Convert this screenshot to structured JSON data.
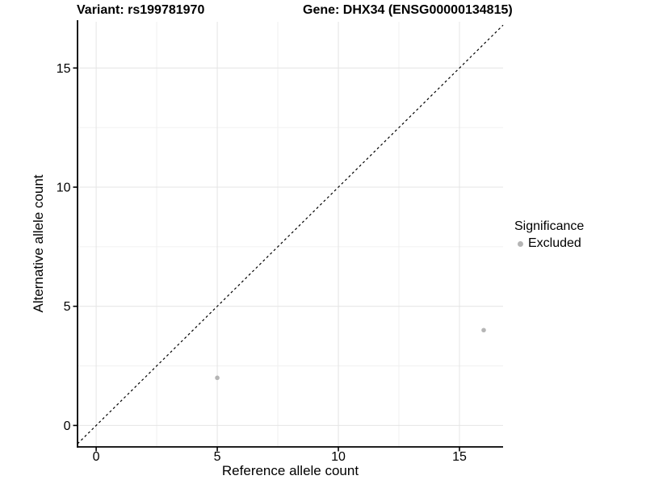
{
  "header": {
    "title_left": "Variant: rs199781970",
    "title_right": "Gene: DHX34 (ENSG00000134815)"
  },
  "chart_data": {
    "type": "scatter",
    "xlabel": "Reference allele count",
    "ylabel": "Alternative allele count",
    "xlim": [
      -0.77,
      16.8
    ],
    "ylim": [
      -0.9,
      16.94
    ],
    "x_ticks": [
      0,
      5,
      10,
      15
    ],
    "y_ticks": [
      0,
      5,
      10,
      15
    ],
    "x_minor_ticks": [
      2.5,
      7.5,
      12.5
    ],
    "y_minor_ticks": [
      2.5,
      7.5,
      12.5
    ],
    "grid": "major and minor gridlines on white background",
    "identity_line": {
      "type": "dashed",
      "equation": "y = x",
      "from": -0.77,
      "to": 16.8,
      "color": "#000000"
    },
    "series": [
      {
        "name": "Excluded",
        "color": "#b5b5b5",
        "points": [
          {
            "x": 5,
            "y": 2
          },
          {
            "x": 16,
            "y": 4
          }
        ]
      }
    ],
    "legend": {
      "title": "Significance",
      "position": "right",
      "items": [
        {
          "label": "Excluded",
          "color": "#b5b5b5",
          "marker": "circle"
        }
      ]
    }
  },
  "colors": {
    "background": "#ffffff",
    "axis": "#000000",
    "tick_label": "#000000",
    "grid_major": "#e4e4e4",
    "grid_minor": "#f0f0f0",
    "point": "#b5b5b5"
  }
}
